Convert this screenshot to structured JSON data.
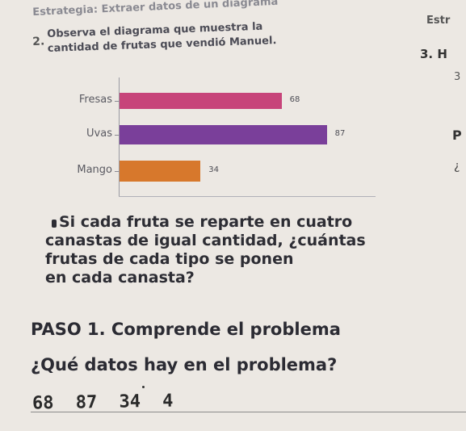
{
  "header": {
    "strategy": "Estrategia: Extraer datos de un diagrama",
    "strategy_right": "Estr",
    "question_number": "2.",
    "intro_line1": "Observa el diagrama que muestra la",
    "intro_line2": "cantidad de frutas que vendió Manuel."
  },
  "right_column": {
    "item3": "3. H",
    "m": "3",
    "p": "P",
    "q": "¿"
  },
  "chart_data": {
    "type": "bar",
    "orientation": "horizontal",
    "categories": [
      "Fresas",
      "Uvas",
      "Mango"
    ],
    "values": [
      68,
      87,
      34
    ],
    "colors": [
      "#c7447a",
      "#7a3f9a",
      "#d7782c"
    ],
    "title": "",
    "xlabel": "",
    "ylabel": "",
    "grid": false
  },
  "question": {
    "bullet": "",
    "line1": "Si cada fruta se reparte en cuatro",
    "line2": "canastas de igual cantidad, ¿cuántas",
    "line3": "frutas de cada tipo se ponen",
    "line4": "en cada canasta?"
  },
  "paso1": "PASO 1. Comprende el problema",
  "datos_question": "¿Qué datos hay en el problema?",
  "handwritten_answer": "68 87 34 4"
}
